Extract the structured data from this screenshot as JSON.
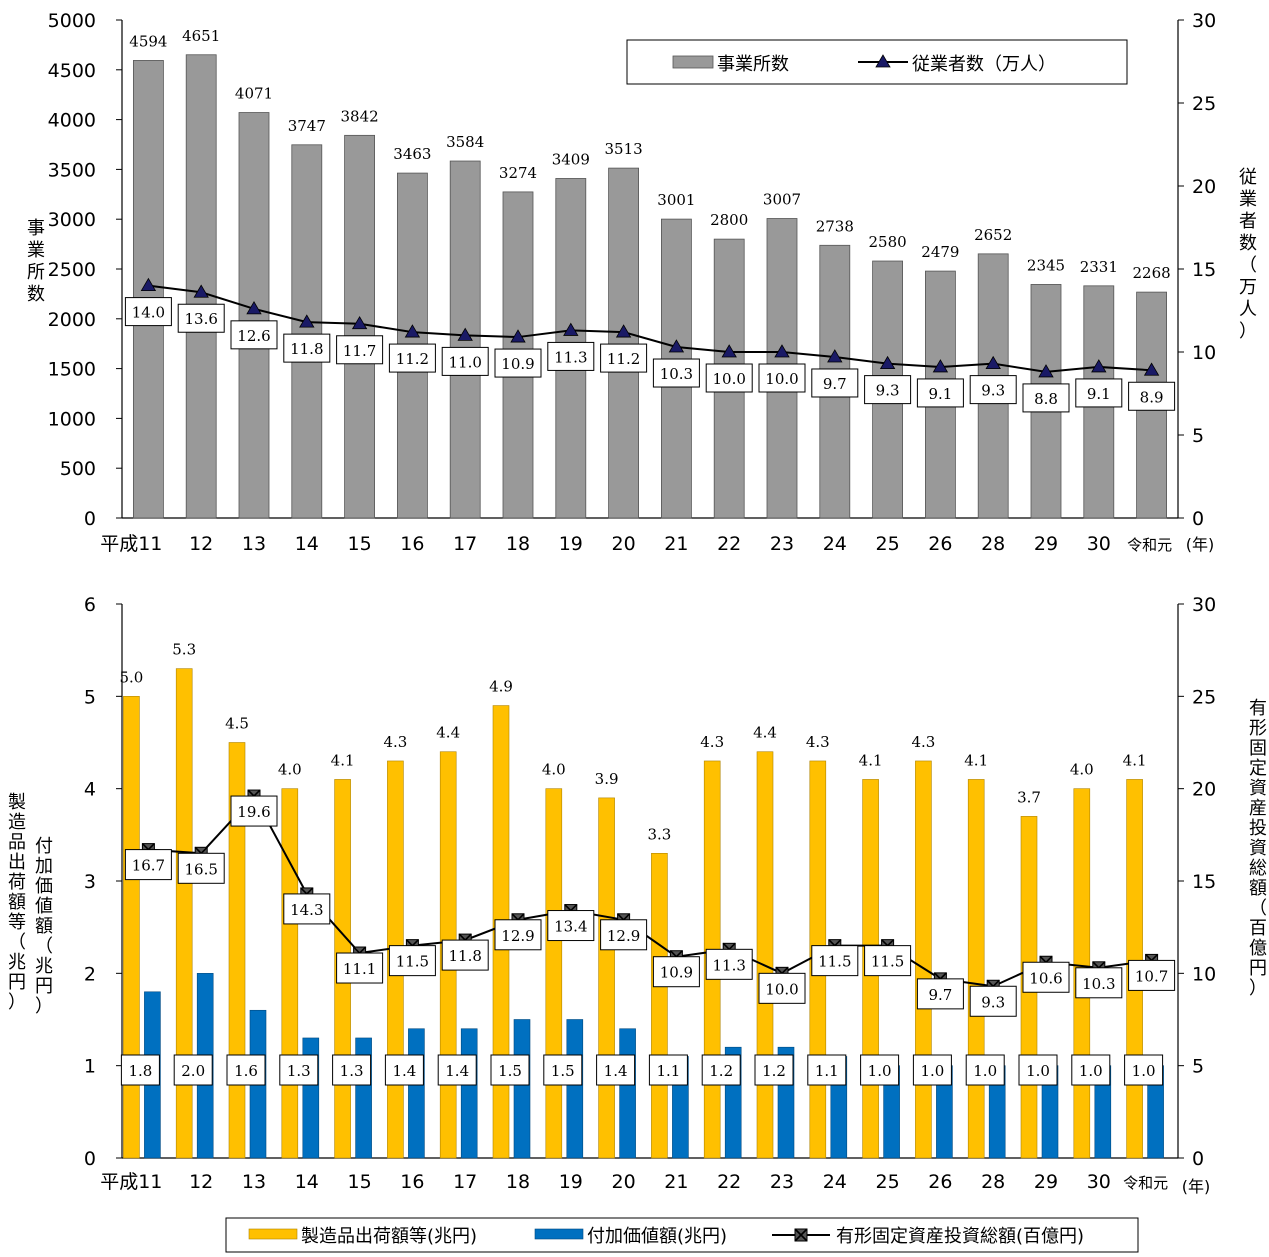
{
  "chart_data": [
    {
      "type": "bar+line",
      "categories": [
        "平成11",
        "12",
        "13",
        "14",
        "15",
        "16",
        "17",
        "18",
        "19",
        "20",
        "21",
        "22",
        "23",
        "24",
        "25",
        "26",
        "28",
        "29",
        "30",
        "令和元"
      ],
      "x_unit_label": "(年)",
      "y_left": {
        "label": "事業所数",
        "range": [
          0,
          5000
        ],
        "ticks": [
          "0",
          "500",
          "1000",
          "1500",
          "2000",
          "2500",
          "3000",
          "3500",
          "4000",
          "4500",
          "5000"
        ]
      },
      "y_right": {
        "label": "従業者数（万人）",
        "range": [
          0,
          30
        ],
        "ticks": [
          "0",
          "5",
          "10",
          "15",
          "20",
          "25",
          "30"
        ]
      },
      "series": [
        {
          "name": "事業所数",
          "kind": "bar",
          "axis": "left",
          "color": "#999999",
          "values": [
            4594,
            4651,
            4071,
            3747,
            3842,
            3463,
            3584,
            3274,
            3409,
            3513,
            3001,
            2800,
            3007,
            2738,
            2580,
            2479,
            2652,
            2345,
            2331,
            2268
          ],
          "labels": [
            "4594",
            "4651",
            "4071",
            "3747",
            "3842",
            "3463",
            "3584",
            "3274",
            "3409",
            "3513",
            "3001",
            "2800",
            "3007",
            "2738",
            "2580",
            "2479",
            "2652",
            "2345",
            "2331",
            "2268"
          ]
        },
        {
          "name": "従業者数（万人）",
          "kind": "line",
          "marker": "triangle",
          "axis": "right",
          "color": "#1a1a66",
          "values": [
            14.0,
            13.6,
            12.6,
            11.8,
            11.7,
            11.2,
            11.0,
            10.9,
            11.3,
            11.2,
            10.3,
            10.0,
            10.0,
            9.7,
            9.3,
            9.1,
            9.3,
            8.8,
            9.1,
            8.9
          ],
          "labels": [
            "14.0",
            "13.6",
            "12.6",
            "11.8",
            "11.7",
            "11.2",
            "11.0",
            "10.9",
            "11.3",
            "11.2",
            "10.3",
            "10.0",
            "10.0",
            "9.7",
            "9.3",
            "9.1",
            "9.3",
            "8.8",
            "9.1",
            "8.9"
          ]
        }
      ],
      "legend_position": "top-right"
    },
    {
      "type": "bar+line",
      "categories": [
        "平成11",
        "12",
        "13",
        "14",
        "15",
        "16",
        "17",
        "18",
        "19",
        "20",
        "21",
        "22",
        "23",
        "24",
        "25",
        "26",
        "28",
        "29",
        "30",
        "令和元"
      ],
      "x_unit_label": "(年)",
      "y_left": {
        "label_a": "製造品出荷額等（兆円）",
        "label_b": "付加価値額（兆円）",
        "range": [
          0,
          6
        ],
        "ticks": [
          "0",
          "1",
          "2",
          "3",
          "4",
          "5",
          "6"
        ]
      },
      "y_right": {
        "label": "有形固定資産投資総額（百億円）",
        "range": [
          0,
          30
        ],
        "ticks": [
          "0",
          "5",
          "10",
          "15",
          "20",
          "25",
          "30"
        ]
      },
      "series": [
        {
          "name": "製造品出荷額等(兆円)",
          "kind": "bar",
          "axis": "left",
          "color": "#ffc000",
          "values": [
            5.0,
            5.3,
            4.5,
            4.0,
            4.1,
            4.3,
            4.4,
            4.9,
            4.0,
            3.9,
            3.3,
            4.3,
            4.4,
            4.3,
            4.1,
            4.3,
            4.1,
            3.7,
            4.0,
            4.1
          ],
          "labels": [
            "5.0",
            "5.3",
            "4.5",
            "4.0",
            "4.1",
            "4.3",
            "4.4",
            "4.9",
            "4.0",
            "3.9",
            "3.3",
            "4.3",
            "4.4",
            "4.3",
            "4.1",
            "4.3",
            "4.1",
            "3.7",
            "4.0",
            "4.1"
          ]
        },
        {
          "name": "付加価値額(兆円)",
          "kind": "bar",
          "axis": "left",
          "color": "#0070c0",
          "values": [
            1.8,
            2.0,
            1.6,
            1.3,
            1.3,
            1.4,
            1.4,
            1.5,
            1.5,
            1.4,
            1.1,
            1.2,
            1.2,
            1.1,
            1.0,
            1.0,
            1.0,
            1.0,
            1.0,
            1.0
          ],
          "labels": [
            "1.8",
            "2.0",
            "1.6",
            "1.3",
            "1.3",
            "1.4",
            "1.4",
            "1.5",
            "1.5",
            "1.4",
            "1.1",
            "1.2",
            "1.2",
            "1.1",
            "1.0",
            "1.0",
            "1.0",
            "1.0",
            "1.0",
            "1.0"
          ]
        },
        {
          "name": "有形固定資産投資総額(百億円)",
          "kind": "line",
          "marker": "x-square",
          "axis": "right",
          "color": "#222222",
          "values": [
            16.7,
            16.5,
            19.6,
            14.3,
            11.1,
            11.5,
            11.8,
            12.9,
            13.4,
            12.9,
            10.9,
            11.3,
            10.0,
            11.5,
            11.5,
            9.7,
            9.3,
            10.6,
            10.3,
            10.7
          ],
          "labels": [
            "16.7",
            "16.5",
            "19.6",
            "14.3",
            "11.1",
            "11.5",
            "11.8",
            "12.9",
            "13.4",
            "12.9",
            "10.9",
            "11.3",
            "10.0",
            "11.5",
            "11.5",
            "9.7",
            "9.3",
            "10.6",
            "10.3",
            "10.7"
          ]
        }
      ],
      "legend_position": "bottom"
    }
  ]
}
